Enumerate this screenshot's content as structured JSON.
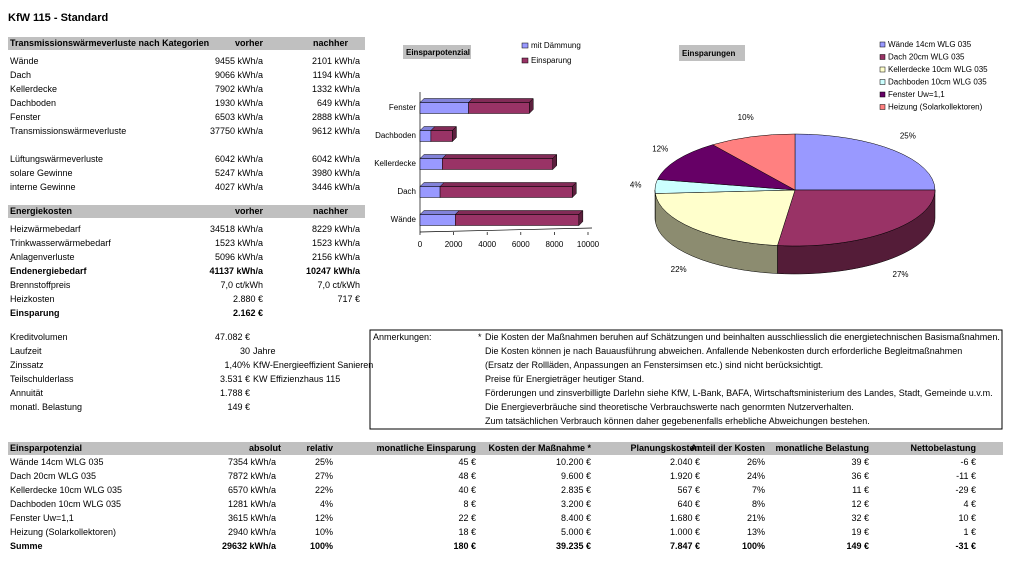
{
  "title": "KfW 115 - Standard",
  "transmission": {
    "header": [
      "Transmissionswärmeverluste nach Kategorien",
      "vorher",
      "nachher"
    ],
    "rows": [
      [
        "Wände",
        "9455 kWh/a",
        "2101 kWh/a"
      ],
      [
        "Dach",
        "9066 kWh/a",
        "1194 kWh/a"
      ],
      [
        "Kellerdecke",
        "7902 kWh/a",
        "1332 kWh/a"
      ],
      [
        "Dachboden",
        "1930 kWh/a",
        "649 kWh/a"
      ],
      [
        "Fenster",
        "6503 kWh/a",
        "2888 kWh/a"
      ],
      [
        "Transmissionswärmeverluste",
        "37750 kWh/a",
        "9612 kWh/a"
      ],
      [
        "Lüftungswärmeverluste",
        "6042 kWh/a",
        "6042 kWh/a"
      ],
      [
        "solare Gewinne",
        "5247 kWh/a",
        "3980 kWh/a"
      ],
      [
        "interne Gewinne",
        "4027 kWh/a",
        "3446 kWh/a"
      ]
    ]
  },
  "energy": {
    "header": [
      "Energiekosten",
      "vorher",
      "nachher"
    ],
    "rows": [
      [
        "Heizwärmebedarf",
        "34518 kWh/a",
        "8229 kWh/a"
      ],
      [
        "Trinkwasserwärmebedarf",
        "1523 kWh/a",
        "1523 kWh/a"
      ],
      [
        "Anlagenverluste",
        "5096 kWh/a",
        "2156 kWh/a"
      ],
      [
        "Endenergiebedarf",
        "41137 kWh/a",
        "10247 kWh/a"
      ],
      [
        "Brennstoffpreis",
        "7,0 ct/kWh",
        "7,0 ct/kWh"
      ],
      [
        "Heizkosten",
        "2.880 €",
        "717 €"
      ],
      [
        "Einsparung",
        "2.162 €"
      ]
    ],
    "bold_rows": [
      3,
      6
    ]
  },
  "credit": [
    [
      "Kreditvolumen",
      "47.082 €"
    ],
    [
      "Laufzeit",
      "30",
      "Jahre"
    ],
    [
      "Zinssatz",
      "1,40%",
      "KfW-Energieeffizient Sanieren"
    ],
    [
      "Teilschulderlass",
      "3.531 €",
      "KW Effizienzhaus 115"
    ],
    [
      "Annuität",
      "1.788 €"
    ],
    [
      "monatl. Belastung",
      "149 €"
    ]
  ],
  "notes": {
    "label": "Anmerkungen:",
    "marker": "*",
    "lines": [
      "Die Kosten der Maßnahmen beruhen auf Schätzungen und beinhalten ausschliesslich die energietechnischen Basismaßnahmen.",
      "Die Kosten können je nach Bauausführung abweichen. Anfallende Nebenkosten durch erforderliche Begleitmaßnahmen",
      "(Ersatz der Rollläden, Anpassungen an Fenstersimsen etc.) sind nicht berücksichtigt.",
      "Preise für Energieträger heutiger Stand.",
      "Förderungen und zinsverbilligte Darlehn siehe KfW, L-Bank, BAFA, Wirtschaftsministerium des Landes, Stadt, Gemeinde u.v.m.",
      "Die Energieverbräuche sind theoretische Verbrauchswerte nach genormten Nutzerverhalten.",
      "Zum tatsächlichen Verbrauch können daher gegebenenfalls erhebliche Abweichungen bestehen."
    ]
  },
  "savings": {
    "header": [
      "Einsparpotenzial",
      "absolut",
      "relativ",
      "monatliche Einsparung",
      "Kosten der Maßnahme *",
      "Planungskosten",
      "Anteil der Kosten",
      "monatliche Belastung",
      "Nettobelastung"
    ],
    "rows": [
      [
        "Wände 14cm WLG 035",
        "7354 kWh/a",
        "25%",
        "45 €",
        "10.200 €",
        "2.040 €",
        "26%",
        "39 €",
        "-6 €"
      ],
      [
        "Dach 20cm WLG 035",
        "7872 kWh/a",
        "27%",
        "48 €",
        "9.600 €",
        "1.920 €",
        "24%",
        "36 €",
        "-11 €"
      ],
      [
        "Kellerdecke 10cm WLG 035",
        "6570 kWh/a",
        "22%",
        "40 €",
        "2.835 €",
        "567 €",
        "7%",
        "11 €",
        "-29 €"
      ],
      [
        "Dachboden 10cm WLG 035",
        "1281 kWh/a",
        "4%",
        "8 €",
        "3.200 €",
        "640 €",
        "8%",
        "12 €",
        "4 €"
      ],
      [
        "Fenster Uw=1,1",
        "3615 kWh/a",
        "12%",
        "22 €",
        "8.400 €",
        "1.680 €",
        "21%",
        "32 €",
        "10 €"
      ],
      [
        "Heizung (Solarkollektoren)",
        "2940 kWh/a",
        "10%",
        "18 €",
        "5.000 €",
        "1.000 €",
        "13%",
        "19 €",
        "1 €"
      ],
      [
        "Summe",
        "29632 kWh/a",
        "100%",
        "180 €",
        "39.235 €",
        "7.847 €",
        "100%",
        "149 €",
        "-31 €"
      ]
    ],
    "bold_rows": [
      6
    ]
  },
  "chart_data": [
    {
      "type": "bar",
      "orientation": "horizontal",
      "stacked": true,
      "title": "Einsparpotenzial",
      "categories": [
        "Fenster",
        "Dachboden",
        "Kellerdecke",
        "Dach",
        "Wände"
      ],
      "series": [
        {
          "name": "mit Dämmung",
          "color": "#9999ff",
          "values": [
            2888,
            649,
            1332,
            1194,
            2101
          ]
        },
        {
          "name": "Einsparung",
          "color": "#993366",
          "values": [
            3615,
            1281,
            6570,
            7872,
            7354
          ]
        }
      ],
      "xlim": [
        0,
        10000
      ],
      "xticks": [
        0,
        2000,
        4000,
        6000,
        8000,
        10000
      ]
    },
    {
      "type": "pie",
      "title": "Einsparungen",
      "categories": [
        "Wände 14cm WLG 035",
        "Dach 20cm WLG 035",
        "Kellerdecke 10cm WLG 035",
        "Dachboden 10cm WLG 035",
        "Fenster Uw=1,1",
        "Heizung (Solarkollektoren)"
      ],
      "values": [
        25,
        27,
        22,
        4,
        12,
        10
      ],
      "value_labels": [
        "25%",
        "27%",
        "22%",
        "4%",
        "12%",
        "10%"
      ],
      "colors": [
        "#9999ff",
        "#993366",
        "#ffffcc",
        "#ccffff",
        "#660066",
        "#ff8080"
      ]
    }
  ]
}
